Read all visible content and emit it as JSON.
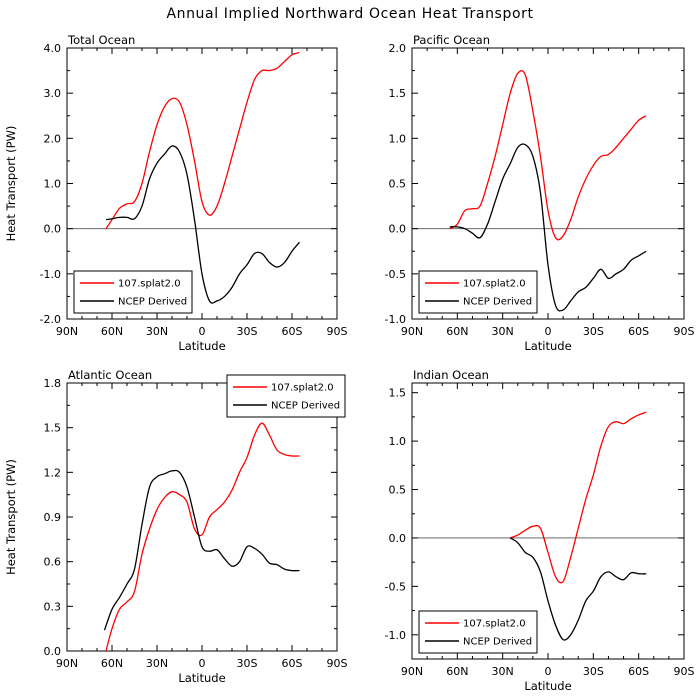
{
  "page_title": "Annual Implied Northward Ocean Heat Transport",
  "chart_data": [
    {
      "type": "line",
      "title": "Total Ocean",
      "xlabel": "Latitude",
      "ylabel": "Heat Transport (PW)",
      "x_ticks": [
        "90N",
        "60N",
        "30N",
        "0",
        "30S",
        "60S",
        "90S"
      ],
      "x_tick_values": [
        90,
        60,
        30,
        0,
        -30,
        -60,
        -90
      ],
      "xlim": [
        90,
        -90
      ],
      "ylim": [
        -2.0,
        4.0
      ],
      "y_ticks": [
        "-2.0",
        "-1.0",
        "0.0",
        "1.0",
        "2.0",
        "3.0",
        "4.0"
      ],
      "y_tick_values": [
        -2,
        -1,
        0,
        1,
        2,
        3,
        4
      ],
      "zero_line": true,
      "legend_position": "bottom-left",
      "series": [
        {
          "name": "107.splat2.0",
          "color": "#ff0000",
          "x": [
            64,
            60,
            55,
            50,
            45,
            40,
            35,
            30,
            25,
            20,
            15,
            10,
            5,
            0,
            -5,
            -10,
            -15,
            -20,
            -25,
            -30,
            -35,
            -40,
            -45,
            -50,
            -55,
            -60,
            -65
          ],
          "y": [
            0.0,
            0.2,
            0.45,
            0.55,
            0.6,
            1.0,
            1.7,
            2.3,
            2.7,
            2.88,
            2.8,
            2.3,
            1.5,
            0.6,
            0.3,
            0.5,
            1.0,
            1.6,
            2.2,
            2.8,
            3.3,
            3.5,
            3.5,
            3.55,
            3.7,
            3.85,
            3.9
          ]
        },
        {
          "name": "NCEP Derived",
          "color": "#000000",
          "x": [
            64,
            60,
            55,
            50,
            45,
            40,
            35,
            30,
            25,
            20,
            15,
            10,
            5,
            0,
            -5,
            -10,
            -15,
            -20,
            -25,
            -30,
            -35,
            -40,
            -45,
            -50,
            -55,
            -60,
            -65
          ],
          "y": [
            0.2,
            0.22,
            0.25,
            0.25,
            0.22,
            0.5,
            1.1,
            1.45,
            1.65,
            1.83,
            1.7,
            1.2,
            0.2,
            -1.0,
            -1.6,
            -1.6,
            -1.5,
            -1.3,
            -1.0,
            -0.8,
            -0.55,
            -0.55,
            -0.75,
            -0.85,
            -0.75,
            -0.5,
            -0.3
          ]
        }
      ]
    },
    {
      "type": "line",
      "title": "Pacific Ocean",
      "xlabel": "Latitude",
      "ylabel": "",
      "x_ticks": [
        "90N",
        "60N",
        "30N",
        "0",
        "30S",
        "60S",
        "90S"
      ],
      "x_tick_values": [
        90,
        60,
        30,
        0,
        -30,
        -60,
        -90
      ],
      "xlim": [
        90,
        -90
      ],
      "ylim": [
        -1.0,
        2.0
      ],
      "y_ticks": [
        "-1.0",
        "-0.5",
        "0.0",
        "0.5",
        "1.0",
        "1.5",
        "2.0"
      ],
      "y_tick_values": [
        -1,
        -0.5,
        0,
        0.5,
        1,
        1.5,
        2
      ],
      "zero_line": true,
      "legend_position": "bottom-left",
      "series": [
        {
          "name": "107.splat2.0",
          "color": "#ff0000",
          "x": [
            65,
            60,
            55,
            50,
            45,
            40,
            35,
            30,
            25,
            20,
            15,
            10,
            5,
            0,
            -5,
            -10,
            -15,
            -20,
            -25,
            -30,
            -35,
            -40,
            -45,
            -50,
            -55,
            -60,
            -65
          ],
          "y": [
            0.0,
            0.05,
            0.2,
            0.22,
            0.25,
            0.5,
            0.8,
            1.15,
            1.5,
            1.72,
            1.7,
            1.3,
            0.8,
            0.2,
            -0.1,
            -0.08,
            0.1,
            0.35,
            0.55,
            0.7,
            0.8,
            0.82,
            0.9,
            1.0,
            1.1,
            1.2,
            1.25
          ]
        },
        {
          "name": "NCEP Derived",
          "color": "#000000",
          "x": [
            65,
            60,
            55,
            50,
            45,
            40,
            35,
            30,
            25,
            20,
            15,
            10,
            5,
            0,
            -5,
            -10,
            -15,
            -20,
            -25,
            -30,
            -35,
            -40,
            -45,
            -50,
            -55,
            -60,
            -65
          ],
          "y": [
            0.02,
            0.02,
            0.0,
            -0.05,
            -0.1,
            0.05,
            0.3,
            0.55,
            0.72,
            0.9,
            0.93,
            0.8,
            0.4,
            -0.4,
            -0.85,
            -0.9,
            -0.8,
            -0.7,
            -0.65,
            -0.55,
            -0.45,
            -0.55,
            -0.5,
            -0.45,
            -0.35,
            -0.3,
            -0.25
          ]
        }
      ]
    },
    {
      "type": "line",
      "title": "Atlantic Ocean",
      "xlabel": "Latitude",
      "ylabel": "Heat Transport (PW)",
      "x_ticks": [
        "90N",
        "60N",
        "30N",
        "0",
        "30S",
        "60S",
        "90S"
      ],
      "x_tick_values": [
        90,
        60,
        30,
        0,
        -30,
        -60,
        -90
      ],
      "xlim": [
        90,
        -90
      ],
      "ylim": [
        0.0,
        1.8
      ],
      "y_ticks": [
        "0.0",
        "0.3",
        "0.6",
        "0.9",
        "1.2",
        "1.5",
        "1.8"
      ],
      "y_tick_values": [
        0,
        0.3,
        0.6,
        0.9,
        1.2,
        1.5,
        1.8
      ],
      "zero_line": false,
      "legend_position": "top-right",
      "series": [
        {
          "name": "107.splat2.0",
          "color": "#ff0000",
          "x": [
            64,
            60,
            55,
            50,
            45,
            40,
            35,
            30,
            25,
            20,
            15,
            10,
            5,
            0,
            -5,
            -10,
            -15,
            -20,
            -25,
            -30,
            -35,
            -40,
            -45,
            -50,
            -55,
            -60,
            -65
          ],
          "y": [
            0.0,
            0.15,
            0.28,
            0.33,
            0.4,
            0.65,
            0.82,
            0.95,
            1.03,
            1.07,
            1.05,
            1.0,
            0.82,
            0.78,
            0.9,
            0.95,
            1.0,
            1.08,
            1.2,
            1.3,
            1.45,
            1.53,
            1.45,
            1.35,
            1.32,
            1.31,
            1.31
          ]
        },
        {
          "name": "NCEP Derived",
          "color": "#000000",
          "x": [
            65,
            60,
            55,
            50,
            45,
            40,
            35,
            30,
            25,
            20,
            15,
            10,
            5,
            0,
            -5,
            -10,
            -15,
            -20,
            -25,
            -30,
            -35,
            -40,
            -45,
            -50,
            -55,
            -60,
            -65
          ],
          "y": [
            0.14,
            0.28,
            0.36,
            0.45,
            0.55,
            0.85,
            1.1,
            1.17,
            1.19,
            1.21,
            1.2,
            1.1,
            0.9,
            0.7,
            0.67,
            0.68,
            0.62,
            0.57,
            0.6,
            0.7,
            0.69,
            0.65,
            0.59,
            0.58,
            0.55,
            0.54,
            0.54
          ]
        }
      ]
    },
    {
      "type": "line",
      "title": "Indian Ocean",
      "xlabel": "Latitude",
      "ylabel": "",
      "x_ticks": [
        "90N",
        "60N",
        "30N",
        "0",
        "30S",
        "60S",
        "90S"
      ],
      "x_tick_values": [
        90,
        60,
        30,
        0,
        -30,
        -60,
        -90
      ],
      "xlim": [
        90,
        -90
      ],
      "ylim": [
        -1.25,
        1.6
      ],
      "y_ticks": [
        "-1.0",
        "-0.5",
        "0.0",
        "0.5",
        "1.0",
        "1.5"
      ],
      "y_tick_values": [
        -1,
        -0.5,
        0,
        0.5,
        1,
        1.5
      ],
      "zero_line": true,
      "legend_position": "bottom-left",
      "series": [
        {
          "name": "107.splat2.0",
          "color": "#ff0000",
          "x": [
            25,
            20,
            15,
            10,
            5,
            0,
            -5,
            -10,
            -15,
            -20,
            -25,
            -30,
            -35,
            -40,
            -45,
            -50,
            -55,
            -60,
            -65
          ],
          "y": [
            0.0,
            0.03,
            0.08,
            0.12,
            0.1,
            -0.15,
            -0.4,
            -0.45,
            -0.2,
            0.1,
            0.4,
            0.65,
            0.95,
            1.15,
            1.2,
            1.18,
            1.23,
            1.27,
            1.3
          ]
        },
        {
          "name": "NCEP Derived",
          "color": "#000000",
          "x": [
            25,
            20,
            15,
            10,
            5,
            0,
            -5,
            -10,
            -15,
            -20,
            -25,
            -30,
            -35,
            -40,
            -45,
            -50,
            -55,
            -60,
            -65
          ],
          "y": [
            0.0,
            -0.05,
            -0.15,
            -0.2,
            -0.35,
            -0.65,
            -0.9,
            -1.05,
            -1.0,
            -0.85,
            -0.65,
            -0.55,
            -0.4,
            -0.35,
            -0.4,
            -0.43,
            -0.36,
            -0.37,
            -0.37
          ]
        }
      ]
    }
  ]
}
